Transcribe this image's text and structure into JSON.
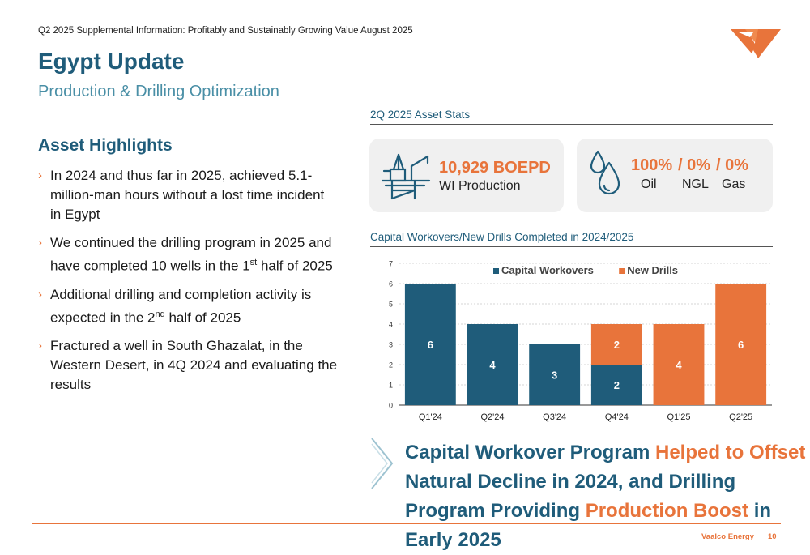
{
  "header": {
    "topline": "Q2 2025 Supplemental Information: Profitably and Sustainably Growing Value August 2025",
    "title": "Egypt Update",
    "subtitle": "Production & Drilling Optimization",
    "logo_icon": "vaalco-logo-icon"
  },
  "highlights": {
    "title": "Asset Highlights",
    "bullets": [
      [
        "In 2024 and thus far in 2025, achieved 5.1-million-man hours without a lost time incident in Egypt",
        "",
        ""
      ],
      [
        "We continued the drilling program in 2025 and have completed 10 wells in the 1",
        "st",
        " half of 2025"
      ],
      [
        "Additional drilling and completion activity is expected in the 2",
        "nd",
        " half of 2025"
      ],
      [
        "Fractured a well in South Ghazalat, in the Western Desert, in 4Q 2024 and evaluating the results",
        "",
        ""
      ]
    ]
  },
  "stats": {
    "label": "2Q 2025 Asset Stats",
    "production": {
      "icon": "oil-rig-icon",
      "value": "10,929 BOEPD",
      "caption": "WI Production"
    },
    "mix": {
      "icon": "droplets-icon",
      "values": [
        "100%",
        "/ 0%",
        "/ 0%"
      ],
      "captions": [
        "Oil",
        "NGL",
        "Gas"
      ]
    }
  },
  "chart_section": {
    "label": "Capital Workovers/New Drills Completed in 2024/2025"
  },
  "chart_data": {
    "type": "bar",
    "stacked": true,
    "categories": [
      "Q1'24",
      "Q2'24",
      "Q3'24",
      "Q4'24",
      "Q1'25",
      "Q2'25"
    ],
    "series": [
      {
        "name": "Capital Workovers",
        "color": "#1f5c7a",
        "values": [
          6,
          4,
          3,
          2,
          0,
          0
        ]
      },
      {
        "name": "New Drills",
        "color": "#e8743b",
        "values": [
          0,
          0,
          0,
          2,
          4,
          6
        ]
      }
    ],
    "ylim": [
      0,
      7
    ],
    "yticks": [
      0,
      1,
      2,
      3,
      4,
      5,
      6,
      7
    ],
    "grid": true,
    "legend": "top-center"
  },
  "callout": {
    "chevron_icon": "chevron-right-icon",
    "part1": "Capital Workover Program ",
    "part2": "Helped to Offset",
    "part3": " Natural Decline in 2024, and Drilling Program Providing ",
    "part4": "Production Boost",
    "part5": " in Early 2025"
  },
  "footer": {
    "company": "Vaalco Energy",
    "page": "10"
  },
  "colors": {
    "teal": "#1f5c7a",
    "orange": "#e8743b",
    "light_teal": "#4a8fa6"
  }
}
